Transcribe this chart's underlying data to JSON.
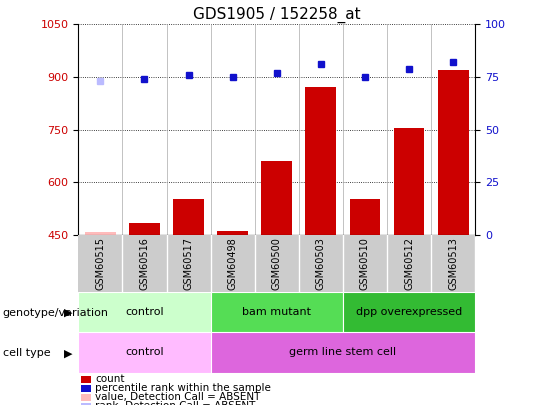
{
  "title": "GDS1905 / 152258_at",
  "samples": [
    "GSM60515",
    "GSM60516",
    "GSM60517",
    "GSM60498",
    "GSM60500",
    "GSM60503",
    "GSM60510",
    "GSM60512",
    "GSM60513"
  ],
  "count_values": [
    457,
    483,
    551,
    460,
    660,
    870,
    553,
    755,
    920
  ],
  "percentile_values": [
    73,
    74,
    76,
    75,
    77,
    81,
    75,
    79,
    82
  ],
  "absent_count_idx": [
    0
  ],
  "absent_rank_idx": [
    0
  ],
  "ylim_left": [
    450,
    1050
  ],
  "ylim_right": [
    0,
    100
  ],
  "yticks_left": [
    450,
    600,
    750,
    900,
    1050
  ],
  "yticks_right": [
    0,
    25,
    50,
    75,
    100
  ],
  "bar_color": "#cc0000",
  "dot_color": "#1111cc",
  "absent_bar_color": "#ffbbbb",
  "absent_dot_color": "#bbbbff",
  "grid_color": "#000000",
  "groups": [
    {
      "label": "control",
      "start": 0,
      "end": 3,
      "color": "#ccffcc"
    },
    {
      "label": "bam mutant",
      "start": 3,
      "end": 6,
      "color": "#55dd55"
    },
    {
      "label": "dpp overexpressed",
      "start": 6,
      "end": 9,
      "color": "#33bb33"
    }
  ],
  "cell_types": [
    {
      "label": "control",
      "start": 0,
      "end": 3,
      "color": "#ffbbff"
    },
    {
      "label": "germ line stem cell",
      "start": 3,
      "end": 9,
      "color": "#dd66dd"
    }
  ],
  "legend_items": [
    {
      "label": "count",
      "color": "#cc0000"
    },
    {
      "label": "percentile rank within the sample",
      "color": "#1111cc"
    },
    {
      "label": "value, Detection Call = ABSENT",
      "color": "#ffbbbb"
    },
    {
      "label": "rank, Detection Call = ABSENT",
      "color": "#bbbbff"
    }
  ],
  "tick_fontsize": 8,
  "title_fontsize": 11,
  "label_fontsize": 8,
  "sample_fontsize": 7,
  "group_fontsize": 8,
  "legend_fontsize": 7.5
}
